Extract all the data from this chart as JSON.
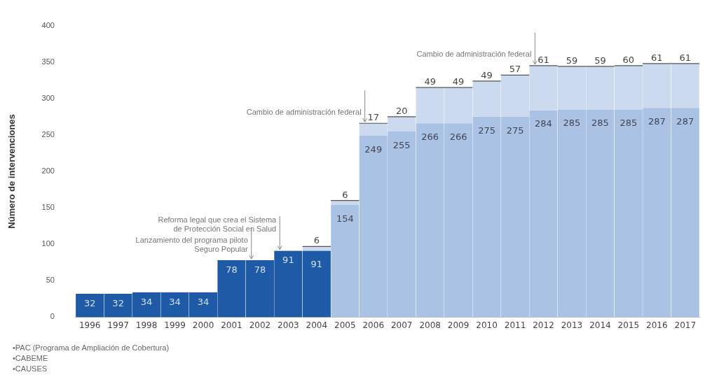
{
  "chart_data": {
    "type": "bar",
    "stacked": true,
    "ylabel": "Número de intervenciones",
    "categories": [
      "1996",
      "1997",
      "1998",
      "1999",
      "2000",
      "2001",
      "2002",
      "2003",
      "2004",
      "2005",
      "2006",
      "2007",
      "2008",
      "2009",
      "2010",
      "2011",
      "2012",
      "2013",
      "2014",
      "2015",
      "2016",
      "2017"
    ],
    "series": [
      {
        "color": "#1f5aa6",
        "values": [
          32,
          32,
          34,
          34,
          34,
          78,
          78,
          91,
          91,
          null,
          null,
          null,
          null,
          null,
          null,
          null,
          null,
          null,
          null,
          null,
          null,
          null
        ]
      },
      {
        "color": "#aac2e3",
        "values": [
          null,
          null,
          null,
          null,
          null,
          null,
          null,
          null,
          null,
          154,
          249,
          255,
          266,
          266,
          275,
          275,
          284,
          285,
          285,
          285,
          287,
          287
        ]
      },
      {
        "color": "#cbdaee",
        "values": [
          null,
          null,
          null,
          null,
          null,
          null,
          null,
          null,
          6,
          6,
          17,
          20,
          49,
          49,
          49,
          57,
          61,
          59,
          59,
          60,
          61,
          61
        ]
      }
    ],
    "ylim": [
      0,
      400
    ],
    "yticks": [
      0,
      50,
      100,
      150,
      200,
      250,
      300,
      350,
      400
    ],
    "grid": false,
    "legend": false,
    "data_labels": true,
    "annotations": [
      {
        "text": "Lanzamiento del programa piloto Seguro Popular",
        "x": "2002",
        "y": 78
      },
      {
        "text": "Reforma legal que crea el Sistema de Protección Social en Salud",
        "x": "2003",
        "y": 91
      },
      {
        "text": "Cambio de administración federal",
        "x": "2006",
        "y": 266
      },
      {
        "text": "Cambio de administración federal",
        "x": "2012",
        "y": 345
      },
      "•PAC (Programa de Ampliación de Cobertura)",
      "•CABEME",
      "•CAUSES"
    ]
  }
}
